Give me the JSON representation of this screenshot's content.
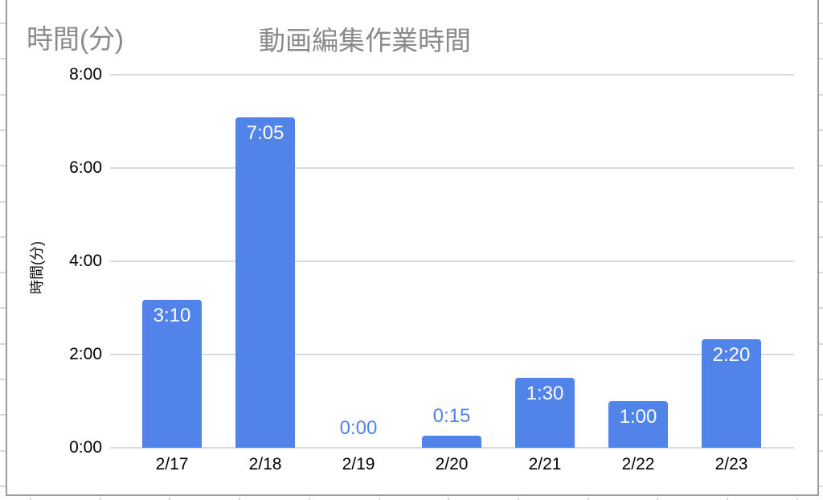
{
  "header": {
    "corner_label": "時間(分)",
    "title": "動画編集作業時間"
  },
  "chart_data": {
    "type": "bar",
    "title": "動画編集作業時間",
    "ylabel": "時間(分)",
    "categories": [
      "2/17",
      "2/18",
      "2/19",
      "2/20",
      "2/21",
      "2/22",
      "2/23"
    ],
    "value_labels": [
      "3:10",
      "7:05",
      "0:00",
      "0:15",
      "1:30",
      "1:00",
      "2:20"
    ],
    "values_hours": [
      3.1667,
      7.0833,
      0,
      0.25,
      1.5,
      1.0,
      2.3333
    ],
    "y_ticks": [
      "0:00",
      "2:00",
      "4:00",
      "6:00",
      "8:00"
    ],
    "y_tick_hours": [
      0,
      2,
      4,
      6,
      8
    ],
    "ylim": [
      0,
      8
    ],
    "grid": true,
    "legend": "none",
    "colors": {
      "bar": "#5183e8",
      "label_inside": "#ffffff",
      "label_outside": "#5183e8",
      "gridline": "#dadada",
      "axis_text": "#000000",
      "title_text": "#8a8a8a",
      "frame_border": "#9c9c9c"
    }
  }
}
